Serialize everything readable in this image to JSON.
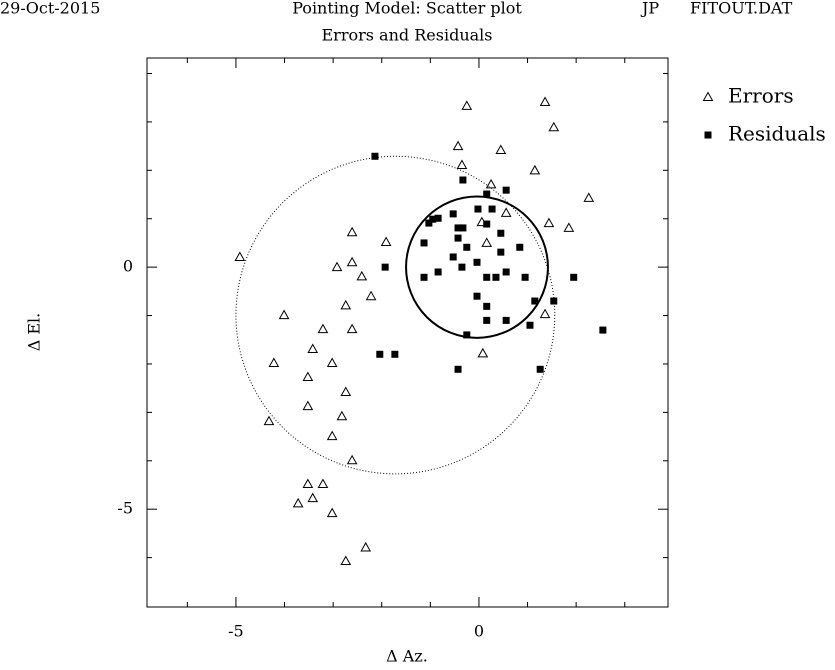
{
  "chart_data": {
    "type": "scatter",
    "date": "29-Oct-2015",
    "title": "Pointing Model: Scatter plot",
    "observer": "JP",
    "file": "FITOUT.DAT",
    "subtitle": "Errors and Residuals",
    "x_label": "Δ Az.",
    "y_label": "Δ El.",
    "xlim": [
      -6.83,
      3.89
    ],
    "ylim": [
      -7.02,
      4.32
    ],
    "xticks": [
      -5,
      0
    ],
    "yticks": [
      -5,
      0
    ],
    "xminor": [
      -6,
      -4,
      -3,
      -2,
      -1,
      1,
      2,
      3
    ],
    "yminor": [
      -6,
      -4,
      -3,
      -2,
      -1,
      1,
      2,
      3,
      4
    ],
    "legend": "upper right",
    "circles": [
      {
        "x": -0.04,
        "y": 0.0,
        "radius": 1.46,
        "style": "solid"
      },
      {
        "x": -1.72,
        "y": -0.99,
        "radius": 3.28,
        "style": "dotted"
      }
    ],
    "series": [
      {
        "name": "Errors",
        "marker": "triangle",
        "color": "#000000",
        "x": [
          -0.25,
          1.36,
          1.54,
          -0.43,
          0.45,
          -0.35,
          1.15,
          0.25,
          2.26,
          1.44,
          1.85,
          0.56,
          0.06,
          0.16,
          -2.61,
          -1.91,
          -4.92,
          -2.92,
          -2.61,
          -2.41,
          -2.22,
          -4.01,
          -2.74,
          -2.61,
          -3.21,
          1.36,
          -3.42,
          0.08,
          -4.22,
          -3.02,
          -3.52,
          -2.74,
          -3.52,
          -2.82,
          -4.32,
          -3.02,
          -2.61,
          -3.52,
          -3.21,
          -3.42,
          -3.72,
          -3.02,
          -2.33,
          -2.74
        ],
        "values": [
          3.33,
          3.41,
          2.89,
          2.5,
          2.42,
          2.11,
          2.0,
          1.71,
          1.43,
          0.91,
          0.81,
          1.12,
          0.93,
          0.5,
          0.72,
          0.52,
          0.21,
          0.0,
          0.1,
          -0.19,
          -0.6,
          -0.99,
          -0.79,
          -1.28,
          -1.28,
          -0.97,
          -1.69,
          -1.78,
          -1.98,
          -1.98,
          -2.27,
          -2.58,
          -2.87,
          -3.08,
          -3.18,
          -3.49,
          -3.99,
          -4.48,
          -4.48,
          -4.77,
          -4.88,
          -5.08,
          -5.79,
          -6.07
        ]
      },
      {
        "name": "Residuals",
        "marker": "square",
        "color": "#000000",
        "x": [
          -2.14,
          -0.33,
          0.56,
          0.16,
          -0.02,
          0.27,
          -0.53,
          -0.84,
          -0.95,
          -1.03,
          -0.43,
          -0.33,
          0.16,
          0.45,
          -0.43,
          -1.13,
          -0.25,
          0.84,
          0.45,
          -0.53,
          -0.04,
          -0.35,
          -1.93,
          -0.84,
          -1.13,
          0.56,
          0.16,
          0.35,
          0.95,
          1.95,
          -0.04,
          1.15,
          1.54,
          0.16,
          0.16,
          0.56,
          1.05,
          2.55,
          -0.25,
          -2.04,
          -1.73,
          -0.43,
          1.26
        ],
        "values": [
          2.29,
          1.8,
          1.59,
          1.51,
          1.2,
          1.2,
          1.1,
          1.01,
          0.99,
          0.91,
          0.81,
          0.81,
          0.89,
          0.7,
          0.6,
          0.5,
          0.41,
          0.41,
          0.31,
          0.21,
          0.1,
          0.0,
          0.0,
          -0.1,
          -0.21,
          -0.1,
          -0.21,
          -0.21,
          -0.21,
          -0.21,
          -0.6,
          -0.7,
          -0.7,
          -0.81,
          -1.1,
          -1.1,
          -1.2,
          -1.3,
          -1.4,
          -1.8,
          -1.8,
          -2.11,
          -2.11
        ]
      }
    ]
  }
}
